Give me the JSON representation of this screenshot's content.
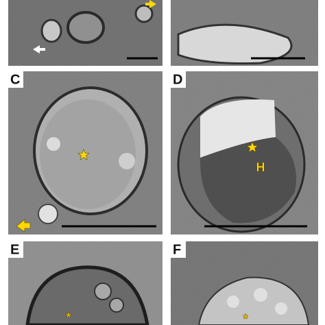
{
  "panels": [
    {
      "label": "C"
    },
    {
      "label": "D",
      "annotation": "H"
    },
    {
      "label": "E",
      "annotation": "*"
    },
    {
      "label": "F",
      "annotation": "*"
    }
  ]
}
